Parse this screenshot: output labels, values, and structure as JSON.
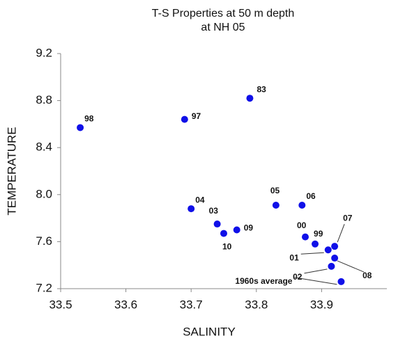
{
  "chart_data": {
    "type": "scatter",
    "title": [
      "T-S Properties at 50 m depth",
      "at NH 05"
    ],
    "x_label": "SALINITY",
    "y_label": "TEMPERATURE",
    "color": "#1010e8",
    "xlim": [
      33.5,
      34.0
    ],
    "xticks": [
      {
        "value": 33.5,
        "label": "33.5"
      },
      {
        "value": 33.6,
        "label": "33.6"
      },
      {
        "value": 33.7,
        "label": "33.7"
      },
      {
        "value": 33.8,
        "label": "33.8"
      },
      {
        "value": 33.9,
        "label": "33.9"
      }
    ],
    "ylim": [
      7.2,
      9.2
    ],
    "yticks": [
      {
        "value": 7.2,
        "label": "7.2"
      },
      {
        "value": 7.6,
        "label": "7.6"
      },
      {
        "value": 8.0,
        "label": "8.0"
      },
      {
        "value": 8.4,
        "label": "8.4"
      },
      {
        "value": 8.8,
        "label": "8.8"
      },
      {
        "value": 9.2,
        "label": "9.2"
      }
    ],
    "x": [
      33.53,
      33.69,
      33.79,
      33.7,
      33.74,
      33.75,
      33.77,
      33.83,
      33.87,
      33.875,
      33.89,
      33.91,
      33.92,
      33.915,
      33.92,
      33.93
    ],
    "values": [
      8.57,
      8.64,
      8.82,
      7.88,
      7.75,
      7.67,
      7.7,
      7.91,
      7.91,
      7.64,
      7.58,
      7.53,
      7.56,
      7.39,
      7.46,
      7.26
    ],
    "point_labels": [
      "98",
      "97",
      "83",
      "04",
      "03",
      "10",
      "09",
      "05",
      "06",
      "00",
      "99",
      "01",
      "07",
      "02",
      "08",
      "1960s average"
    ]
  }
}
